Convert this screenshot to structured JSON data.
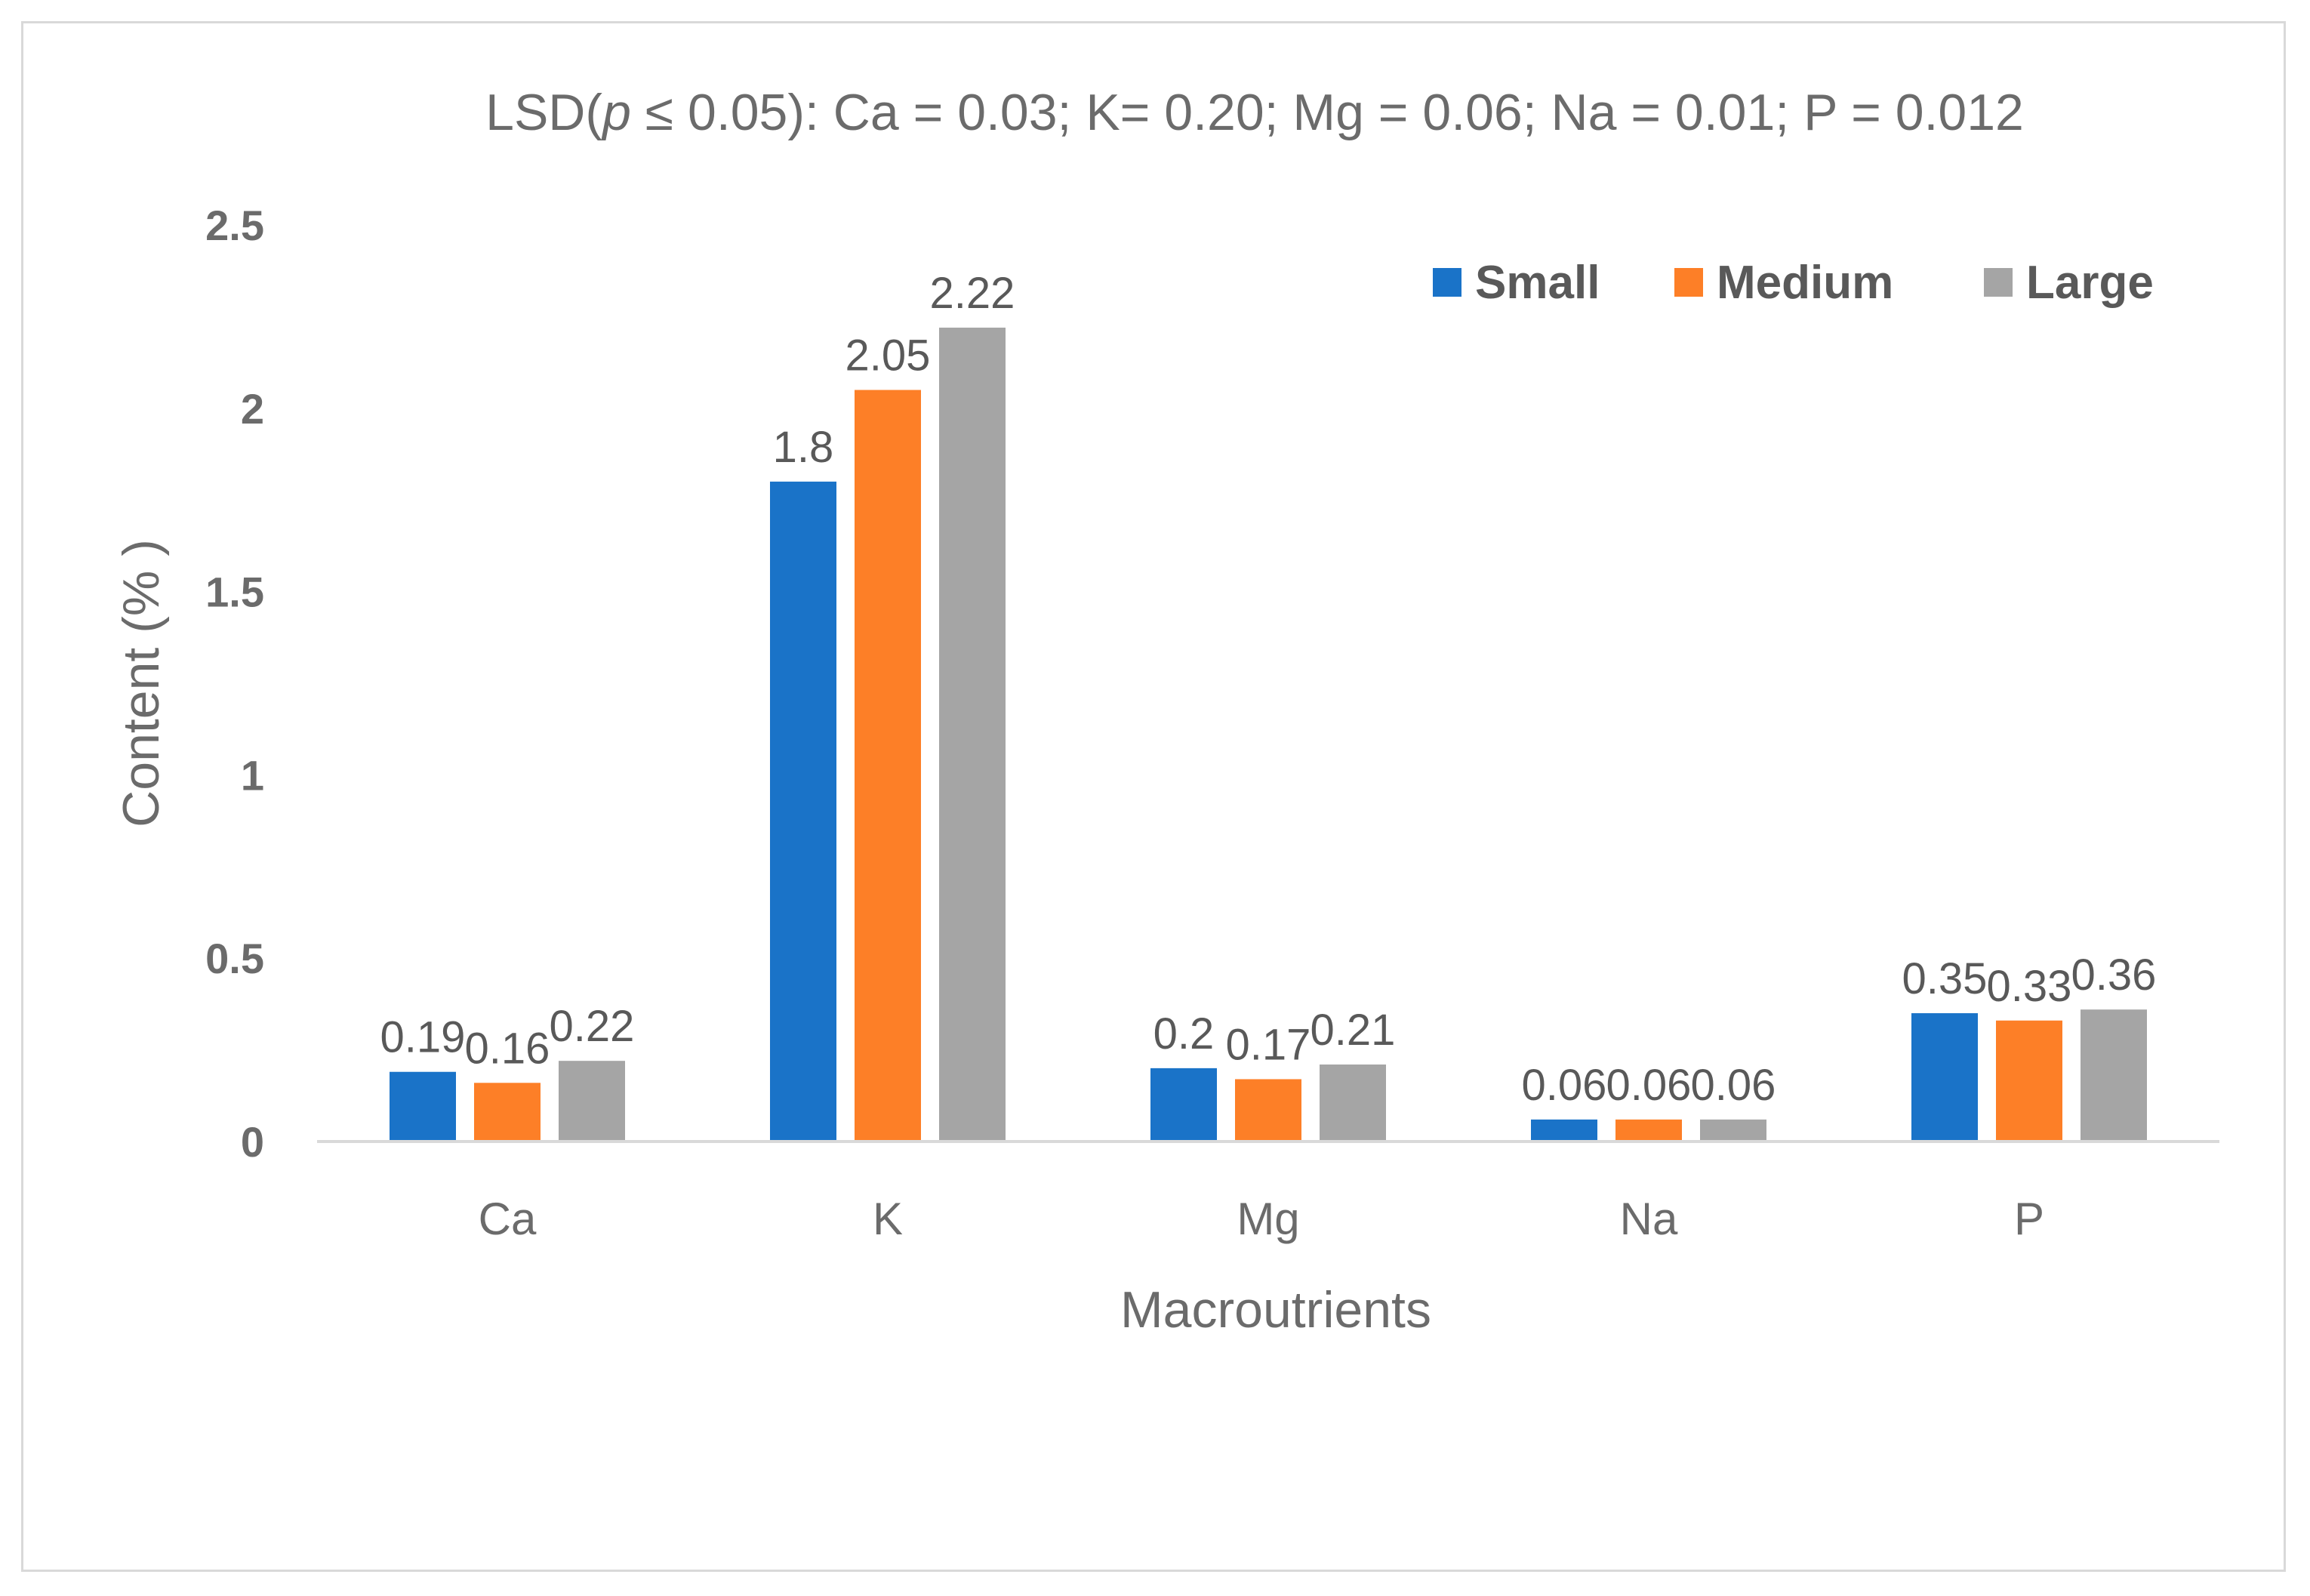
{
  "chart_data": {
    "type": "bar",
    "title_parts": {
      "prefix": "LSD(",
      "italic": "p",
      "suffix": " ≤ 0.05): Ca = 0.03; K= 0.20; Mg = 0.06; Na = 0.01; P = 0.012"
    },
    "xlabel": "Macroutrients",
    "ylabel": "Content (% )",
    "ylim": [
      0,
      2.5
    ],
    "yticks": [
      "0",
      "0.5",
      "1",
      "1.5",
      "2",
      "2.5"
    ],
    "ytick_values": [
      0,
      0.5,
      1,
      1.5,
      2,
      2.5
    ],
    "categories": [
      "Ca",
      "K",
      "Mg",
      "Na",
      "P"
    ],
    "series": [
      {
        "name": "Small",
        "color": "#1a73c8",
        "values": [
          0.19,
          1.8,
          0.2,
          0.06,
          0.35
        ],
        "labels": [
          "0.19",
          "1.8",
          "0.2",
          "0.06",
          "0.35"
        ]
      },
      {
        "name": "Medium",
        "color": "#fd7f27",
        "values": [
          0.16,
          2.05,
          0.17,
          0.06,
          0.33
        ],
        "labels": [
          "0.16",
          "2.05",
          "0.17",
          "0.06",
          "0.33"
        ]
      },
      {
        "name": "Large",
        "color": "#a5a5a5",
        "values": [
          0.22,
          2.22,
          0.21,
          0.06,
          0.36
        ],
        "labels": [
          "0.22",
          "2.22",
          "0.21",
          "0.06",
          "0.36"
        ]
      }
    ],
    "legend_position": "top-right",
    "grid": false
  }
}
